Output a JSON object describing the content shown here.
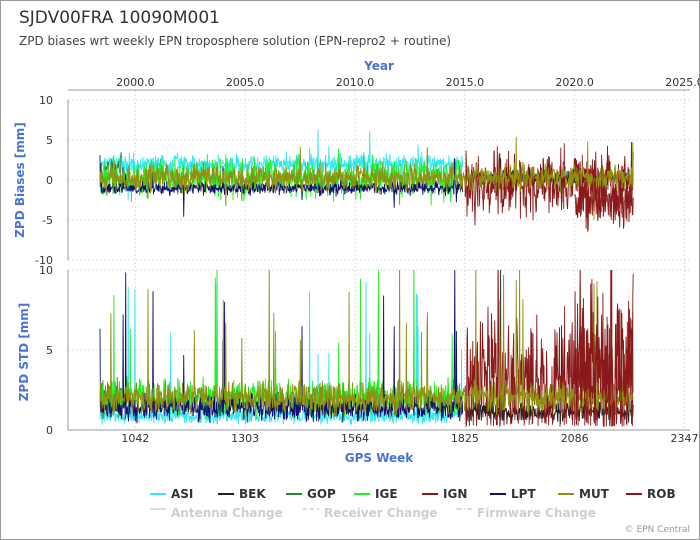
{
  "header": {
    "title": "SJDV00FRA 10090M001",
    "subtitle": "ZPD biases wrt weekly EPN troposphere solution (EPN-repro2 + routine)",
    "credit": "© EPN Central"
  },
  "chart_data": {
    "type": "line",
    "x_axis": {
      "label": "GPS Week",
      "range": [
        882,
        2360
      ],
      "ticks": [
        1042,
        1303,
        1564,
        1825,
        2086,
        2347
      ]
    },
    "top_axis": {
      "label": "Year",
      "ticks": [
        2000.0,
        2005.0,
        2010.0,
        2015.0,
        2020.0,
        2025.0
      ],
      "tick_weeks": [
        1042,
        1303,
        1564,
        1825,
        2086,
        2347
      ]
    },
    "panels": [
      {
        "name": "biases",
        "ylabel": "ZPD Biases [mm]",
        "ylim": [
          -10,
          10
        ],
        "yticks": [
          10,
          5,
          0,
          -5,
          -10
        ]
      },
      {
        "name": "std",
        "ylabel": "ZPD STD [mm]",
        "ylim": [
          0,
          10
        ],
        "yticks": [
          10,
          5,
          0
        ]
      }
    ],
    "series": [
      {
        "name": "ASI",
        "color": "#33e6f2",
        "weeks": [
          958,
          1820
        ],
        "bias_level": 2.0,
        "bias_noise": 0.6,
        "std_level": 0.9,
        "std_noise": 0.3
      },
      {
        "name": "BEK",
        "color": "#222222",
        "weeks": [
          1830,
          2225
        ],
        "bias_level": 0.4,
        "bias_noise": 0.5,
        "std_level": 1.1,
        "std_noise": 0.4
      },
      {
        "name": "GOP",
        "color": "#2a8a2a",
        "weeks": [
          958,
          1010
        ],
        "bias_level": 1.5,
        "bias_noise": 1.0,
        "std_level": 2.0,
        "std_noise": 0.8
      },
      {
        "name": "IGE",
        "color": "#22ee22",
        "weeks": [
          958,
          1820
        ],
        "bias_level": 0.3,
        "bias_noise": 1.2,
        "std_level": 2.0,
        "std_noise": 0.7
      },
      {
        "name": "IGN",
        "color": "#8a1a1a",
        "weeks": [
          1825,
          2225
        ],
        "bias_level": -0.5,
        "bias_noise": 2.0,
        "std_level": 3.0,
        "std_noise": 2.5
      },
      {
        "name": "LPT",
        "color": "#10106e",
        "weeks": [
          958,
          1820
        ],
        "bias_level": -1.0,
        "bias_noise": 0.4,
        "std_level": 1.4,
        "std_noise": 0.5
      },
      {
        "name": "MUT",
        "color": "#8f8f10",
        "weeks": [
          958,
          2225
        ],
        "bias_level": 0.3,
        "bias_noise": 0.8,
        "std_level": 2.0,
        "std_noise": 0.6
      },
      {
        "name": "ROB",
        "color": "#8a1a1a",
        "weeks": [
          2086,
          2225
        ],
        "bias_level": -3.0,
        "bias_noise": 1.5,
        "std_level": 4.0,
        "std_noise": 3.0
      }
    ],
    "legend": {
      "placement": "bottom",
      "entries": [
        "ASI",
        "BEK",
        "GOP",
        "IGE",
        "IGN",
        "LPT",
        "MUT",
        "ROB"
      ],
      "events": [
        {
          "name": "Antenna Change",
          "style": "solid"
        },
        {
          "name": "Receiver Change",
          "style": "dashed"
        },
        {
          "name": "Firmware Change",
          "style": "dashdot"
        }
      ]
    }
  }
}
